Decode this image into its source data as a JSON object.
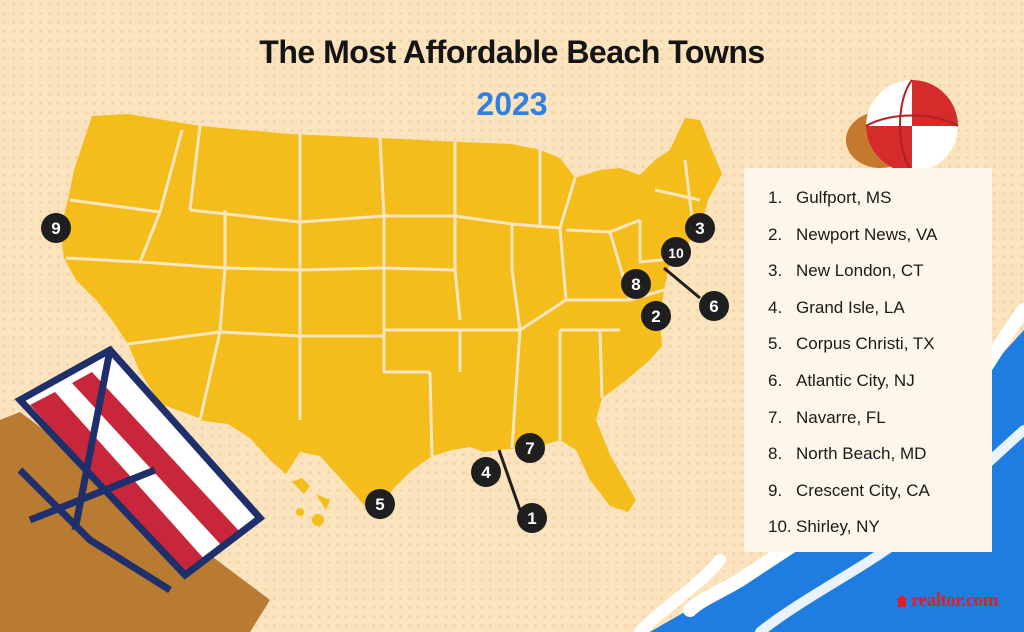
{
  "title": "The Most Affordable Beach Towns",
  "year": "2023",
  "markers": [
    {
      "num": "1"
    },
    {
      "num": "2"
    },
    {
      "num": "3"
    },
    {
      "num": "4"
    },
    {
      "num": "5"
    },
    {
      "num": "6"
    },
    {
      "num": "7"
    },
    {
      "num": "8"
    },
    {
      "num": "9"
    },
    {
      "num": "10"
    }
  ],
  "legend": [
    {
      "num": "1.",
      "name": "Gulfport, MS"
    },
    {
      "num": "2.",
      "name": "Newport News, VA"
    },
    {
      "num": "3.",
      "name": "New London, CT"
    },
    {
      "num": "4.",
      "name": "Grand Isle, LA"
    },
    {
      "num": "5.",
      "name": "Corpus Christi, TX"
    },
    {
      "num": "6.",
      "name": "Atlantic City, NJ"
    },
    {
      "num": "7.",
      "name": "Navarre, FL"
    },
    {
      "num": "8.",
      "name": "North Beach, MD"
    },
    {
      "num": "9.",
      "name": "Crescent City, CA"
    },
    {
      "num": "10.",
      "name": "Shirley, NY"
    }
  ],
  "brand": "realtor.com",
  "colors": {
    "background": "#fbe3bd",
    "land": "#f4bd1b",
    "state_border": "#fbe6bf",
    "marker": "#1f1f1f",
    "year": "#2f80e6",
    "water": "#1f7ce0",
    "brand": "#d92228"
  }
}
